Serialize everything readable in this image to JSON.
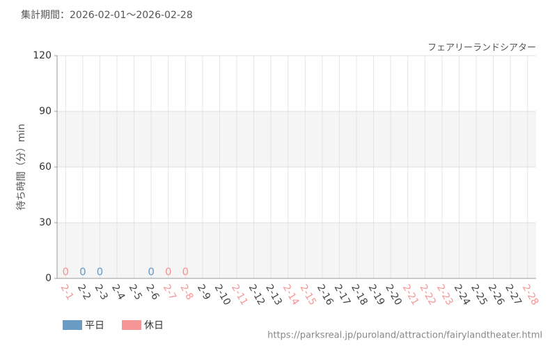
{
  "chart_data": {
    "type": "bar",
    "subtitle": "集計期間：2026-02-01～2026-02-28",
    "annotation": "フェアリーランドシアター",
    "y_label": "待ち時間（分）min",
    "footer": "https://parksreal.jp/puroland/attraction/fairylandtheater.html",
    "categories": [
      "2-1",
      "2-2",
      "2-3",
      "2-4",
      "2-5",
      "2-6",
      "2-7",
      "2-8",
      "2-9",
      "2-10",
      "2-11",
      "2-12",
      "2-13",
      "2-14",
      "2-15",
      "2-16",
      "2-17",
      "2-18",
      "2-19",
      "2-20",
      "2-21",
      "2-22",
      "2-23",
      "2-24",
      "2-25",
      "2-26",
      "2-27",
      "2-28"
    ],
    "category_label_colors": [
      "#f59595",
      "#444444",
      "#444444",
      "#444444",
      "#444444",
      "#444444",
      "#f59595",
      "#f59595",
      "#444444",
      "#444444",
      "#f59595",
      "#444444",
      "#444444",
      "#f59595",
      "#f59595",
      "#444444",
      "#444444",
      "#444444",
      "#444444",
      "#444444",
      "#f59595",
      "#f59595",
      "#f59595",
      "#444444",
      "#444444",
      "#444444",
      "#444444",
      "#f59595"
    ],
    "series": [
      {
        "name": "平日",
        "color": "#6a9bc3",
        "values": [
          null,
          0,
          0,
          null,
          null,
          0,
          null,
          null,
          null,
          null,
          null,
          null,
          null,
          null,
          null,
          null,
          null,
          null,
          null,
          null,
          null,
          null,
          null,
          null,
          null,
          null,
          null,
          null
        ]
      },
      {
        "name": "休日",
        "color": "#f59595",
        "values": [
          0,
          null,
          null,
          null,
          null,
          null,
          0,
          0,
          null,
          null,
          null,
          null,
          null,
          null,
          null,
          null,
          null,
          null,
          null,
          null,
          null,
          null,
          null,
          null,
          null,
          null,
          null,
          null
        ]
      }
    ],
    "ylim": [
      0,
      120
    ],
    "yticks": [
      0,
      30,
      60,
      90,
      120
    ],
    "grid": true
  }
}
